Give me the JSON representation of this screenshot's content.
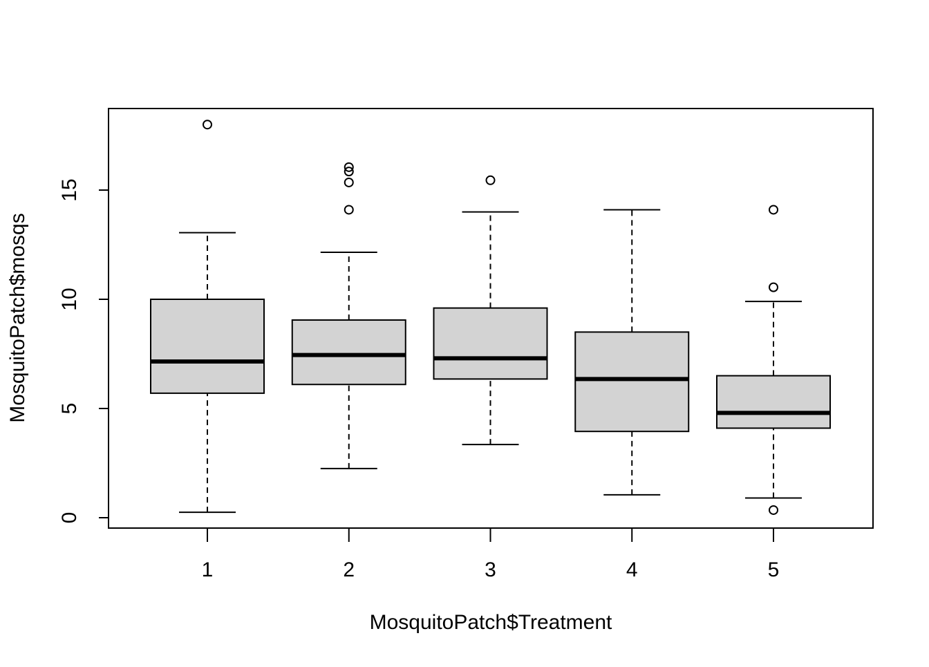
{
  "chart_data": {
    "type": "boxplot",
    "title": "",
    "xlabel": "MosquitoPatch$Treatment",
    "ylabel": "MosquitoPatch$mosqs",
    "ylim": [
      -0.5,
      19.2
    ],
    "y_ticks": [
      0,
      5,
      10,
      15
    ],
    "y_tick_labels": [
      "0",
      "5",
      "10",
      "15"
    ],
    "categories": [
      "1",
      "2",
      "3",
      "4",
      "5"
    ],
    "boxes": [
      {
        "category": "1",
        "whisker_low": 0.25,
        "q1": 5.7,
        "median": 7.15,
        "q3": 10.0,
        "whisker_high": 13.05,
        "outliers": [
          18.0
        ]
      },
      {
        "category": "2",
        "whisker_low": 2.25,
        "q1": 6.1,
        "median": 7.45,
        "q3": 9.05,
        "whisker_high": 12.15,
        "outliers": [
          16.05,
          15.85,
          15.35,
          14.1
        ]
      },
      {
        "category": "3",
        "whisker_low": 3.35,
        "q1": 6.35,
        "median": 7.3,
        "q3": 9.6,
        "whisker_high": 14.0,
        "outliers": [
          15.45
        ]
      },
      {
        "category": "4",
        "whisker_low": 1.05,
        "q1": 3.95,
        "median": 6.35,
        "q3": 8.5,
        "whisker_high": 14.1,
        "outliers": []
      },
      {
        "category": "5",
        "whisker_low": 0.9,
        "q1": 4.1,
        "median": 4.8,
        "q3": 6.5,
        "whisker_high": 9.9,
        "outliers": [
          14.1,
          10.55,
          0.35
        ]
      }
    ],
    "box_fill": "#d3d3d3",
    "line_color": "#000000",
    "grid": false,
    "legend": "none"
  }
}
